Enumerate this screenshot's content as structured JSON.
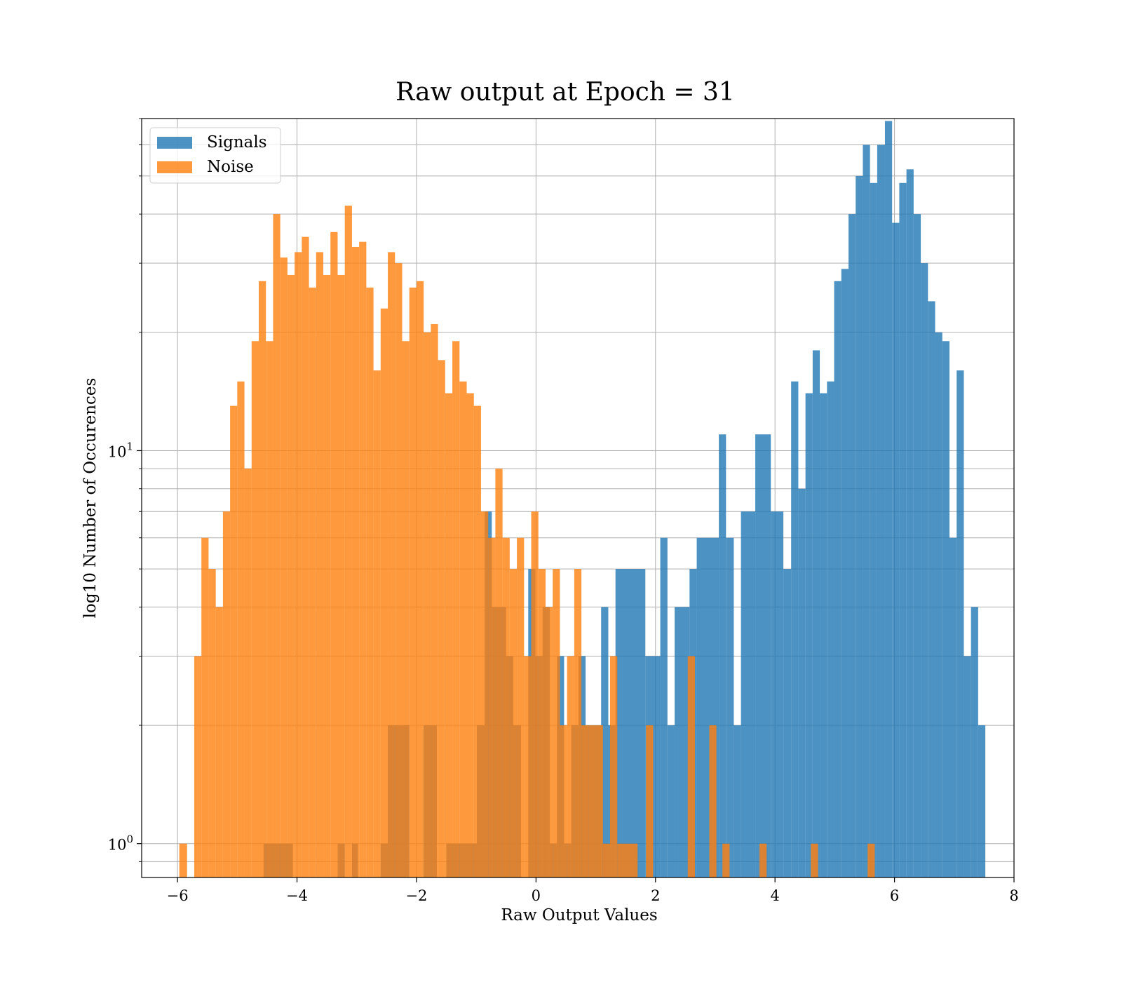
{
  "chart_data": {
    "type": "histogram",
    "title": "Raw output at Epoch = 31",
    "xlabel": "Raw Output Values",
    "ylabel": "log10 Number of Occurences",
    "yscale": "log",
    "xlim": [
      -6.6,
      8.0
    ],
    "ylim": [
      0.82,
      70
    ],
    "x_ticks": [
      -6,
      -4,
      -2,
      0,
      2,
      4,
      6,
      8
    ],
    "x_tick_labels": [
      "−6",
      "−4",
      "−2",
      "0",
      "2",
      "4",
      "6",
      "8"
    ],
    "y_ticks": [
      1,
      10
    ],
    "y_tick_labels": [
      {
        "base": "10",
        "exp": "0"
      },
      {
        "base": "10",
        "exp": "1"
      }
    ],
    "grid": true,
    "legend_position": "upper-left",
    "series": [
      {
        "name": "Signals",
        "color": "#1f77b4",
        "alpha": 0.8,
        "bins": [
          [
            -4.56,
            -4.07,
            1
          ],
          [
            -3.32,
            -3.2,
            1
          ],
          [
            -3.08,
            -2.98,
            1
          ],
          [
            -2.6,
            -2.48,
            1
          ],
          [
            -2.48,
            -2.12,
            2
          ],
          [
            -1.88,
            -1.66,
            2
          ],
          [
            -1.5,
            -0.99,
            1
          ],
          [
            -0.99,
            -0.86,
            2
          ],
          [
            -0.86,
            -0.74,
            7
          ],
          [
            -0.74,
            -0.5,
            4
          ],
          [
            -0.5,
            -0.38,
            3
          ],
          [
            -0.38,
            -0.25,
            2
          ],
          [
            -0.13,
            -0.01,
            5
          ],
          [
            -0.01,
            0.11,
            3
          ],
          [
            0.11,
            0.23,
            4
          ],
          [
            0.23,
            0.35,
            1
          ],
          [
            0.35,
            0.47,
            3
          ],
          [
            0.47,
            0.59,
            1
          ],
          [
            0.59,
            0.71,
            2
          ],
          [
            0.71,
            0.83,
            3
          ],
          [
            0.83,
            1.09,
            2
          ],
          [
            1.09,
            1.21,
            4
          ],
          [
            1.21,
            1.33,
            2
          ],
          [
            1.33,
            1.83,
            5
          ],
          [
            1.83,
            2.08,
            3
          ],
          [
            2.08,
            2.2,
            6
          ],
          [
            2.2,
            2.32,
            2
          ],
          [
            2.32,
            2.57,
            4
          ],
          [
            2.57,
            2.69,
            5
          ],
          [
            2.69,
            3.06,
            6
          ],
          [
            3.06,
            3.18,
            11
          ],
          [
            3.18,
            3.31,
            6
          ],
          [
            3.31,
            3.43,
            2
          ],
          [
            3.43,
            3.67,
            7
          ],
          [
            3.67,
            3.93,
            11
          ],
          [
            3.93,
            4.14,
            7
          ],
          [
            4.14,
            4.27,
            5
          ],
          [
            4.27,
            4.39,
            15
          ],
          [
            4.39,
            4.51,
            8
          ],
          [
            4.51,
            4.63,
            14
          ],
          [
            4.63,
            4.75,
            18
          ],
          [
            4.75,
            4.87,
            14
          ],
          [
            4.87,
            4.99,
            15
          ],
          [
            4.99,
            5.11,
            27
          ],
          [
            5.11,
            5.23,
            29
          ],
          [
            5.23,
            5.35,
            40
          ],
          [
            5.35,
            5.47,
            50
          ],
          [
            5.47,
            5.59,
            60
          ],
          [
            5.59,
            5.71,
            48
          ],
          [
            5.71,
            5.84,
            60
          ],
          [
            5.84,
            5.96,
            69
          ],
          [
            5.96,
            6.08,
            38
          ],
          [
            6.08,
            6.2,
            48
          ],
          [
            6.2,
            6.32,
            52
          ],
          [
            6.32,
            6.44,
            40
          ],
          [
            6.44,
            6.56,
            30
          ],
          [
            6.56,
            6.68,
            24
          ],
          [
            6.68,
            6.8,
            20
          ],
          [
            6.8,
            6.92,
            19
          ],
          [
            6.92,
            7.04,
            6
          ],
          [
            7.04,
            7.16,
            16
          ],
          [
            7.16,
            7.28,
            3
          ],
          [
            7.28,
            7.4,
            4
          ],
          [
            7.4,
            7.52,
            2
          ]
        ]
      },
      {
        "name": "Noise",
        "color": "#ff7f0e",
        "alpha": 0.8,
        "bins": [
          [
            -5.97,
            -5.84,
            1
          ],
          [
            -5.72,
            -5.6,
            3
          ],
          [
            -5.6,
            -5.48,
            6
          ],
          [
            -5.48,
            -5.36,
            5
          ],
          [
            -5.36,
            -5.24,
            4
          ],
          [
            -5.24,
            -5.12,
            7
          ],
          [
            -5.12,
            -5.0,
            13
          ],
          [
            -5.0,
            -4.88,
            15
          ],
          [
            -4.88,
            -4.76,
            9
          ],
          [
            -4.76,
            -4.64,
            19
          ],
          [
            -4.64,
            -4.52,
            27
          ],
          [
            -4.52,
            -4.4,
            19
          ],
          [
            -4.4,
            -4.28,
            40
          ],
          [
            -4.28,
            -4.16,
            31
          ],
          [
            -4.16,
            -4.04,
            28
          ],
          [
            -4.04,
            -3.92,
            32
          ],
          [
            -3.92,
            -3.8,
            35
          ],
          [
            -3.8,
            -3.68,
            26
          ],
          [
            -3.68,
            -3.56,
            32
          ],
          [
            -3.56,
            -3.44,
            28
          ],
          [
            -3.44,
            -3.32,
            36
          ],
          [
            -3.32,
            -3.2,
            28
          ],
          [
            -3.2,
            -3.08,
            42
          ],
          [
            -3.08,
            -2.96,
            33
          ],
          [
            -2.96,
            -2.84,
            34
          ],
          [
            -2.84,
            -2.72,
            26
          ],
          [
            -2.72,
            -2.6,
            16
          ],
          [
            -2.6,
            -2.48,
            23
          ],
          [
            -2.48,
            -2.36,
            32
          ],
          [
            -2.36,
            -2.24,
            30
          ],
          [
            -2.24,
            -2.12,
            19
          ],
          [
            -2.12,
            -2.0,
            26
          ],
          [
            -2.0,
            -1.88,
            27
          ],
          [
            -1.88,
            -1.76,
            20
          ],
          [
            -1.76,
            -1.64,
            21
          ],
          [
            -1.64,
            -1.52,
            17
          ],
          [
            -1.52,
            -1.4,
            14
          ],
          [
            -1.4,
            -1.28,
            19
          ],
          [
            -1.28,
            -1.16,
            15
          ],
          [
            -1.16,
            -1.04,
            14
          ],
          [
            -1.04,
            -0.92,
            13
          ],
          [
            -0.92,
            -0.8,
            7
          ],
          [
            -0.8,
            -0.68,
            6
          ],
          [
            -0.68,
            -0.56,
            9
          ],
          [
            -0.56,
            -0.44,
            6
          ],
          [
            -0.44,
            -0.32,
            5
          ],
          [
            -0.32,
            -0.2,
            6
          ],
          [
            -0.2,
            -0.08,
            3
          ],
          [
            -0.08,
            0.04,
            7
          ],
          [
            0.04,
            0.16,
            5
          ],
          [
            0.16,
            0.28,
            4
          ],
          [
            0.28,
            0.4,
            5
          ],
          [
            0.4,
            0.52,
            2
          ],
          [
            0.52,
            0.64,
            3
          ],
          [
            0.64,
            0.76,
            5
          ],
          [
            0.76,
            0.88,
            2
          ],
          [
            0.88,
            1.0,
            2
          ],
          [
            1.0,
            1.12,
            2
          ],
          [
            1.12,
            1.24,
            1
          ],
          [
            1.24,
            1.36,
            3
          ],
          [
            1.36,
            1.48,
            1
          ],
          [
            1.48,
            1.7,
            1
          ],
          [
            1.84,
            1.96,
            2
          ],
          [
            2.54,
            2.66,
            3
          ],
          [
            2.9,
            3.02,
            2
          ],
          [
            3.12,
            3.24,
            1
          ],
          [
            3.74,
            3.86,
            1
          ],
          [
            4.6,
            4.72,
            1
          ],
          [
            5.55,
            5.67,
            1
          ]
        ]
      }
    ]
  }
}
